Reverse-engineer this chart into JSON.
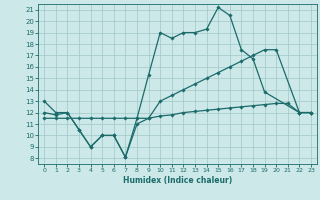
{
  "xlabel": "Humidex (Indice chaleur)",
  "bg_color": "#cde8e8",
  "grid_color": "#a0c8c8",
  "line_color": "#1b6b6b",
  "xmin": -0.5,
  "xmax": 23.5,
  "ymin": 7.5,
  "ymax": 21.5,
  "yticks": [
    8,
    9,
    10,
    11,
    12,
    13,
    14,
    15,
    16,
    17,
    18,
    19,
    20,
    21
  ],
  "xticks": [
    0,
    1,
    2,
    3,
    4,
    5,
    6,
    7,
    8,
    9,
    10,
    11,
    12,
    13,
    14,
    15,
    16,
    17,
    18,
    19,
    20,
    21,
    22,
    23
  ],
  "line1_x": [
    0,
    1,
    2,
    3,
    4,
    5,
    6,
    7,
    8,
    9,
    10,
    11,
    12,
    13,
    14,
    15,
    16,
    17,
    18,
    19,
    22,
    23
  ],
  "line1_y": [
    13,
    12,
    12,
    10.5,
    9,
    10,
    10,
    8.1,
    11.5,
    15.3,
    19,
    18.5,
    19,
    19,
    19.3,
    21.2,
    20.5,
    17.5,
    16.7,
    13.8,
    12,
    12
  ],
  "line2_x": [
    0,
    1,
    2,
    3,
    4,
    5,
    6,
    7,
    8,
    9,
    10,
    11,
    12,
    13,
    14,
    15,
    16,
    17,
    18,
    19,
    20,
    22,
    23
  ],
  "line2_y": [
    12,
    11.8,
    12,
    10.5,
    9,
    10,
    10,
    8.1,
    11,
    11.5,
    13,
    13.5,
    14,
    14.5,
    15,
    15.5,
    16,
    16.5,
    17,
    17.5,
    17.5,
    12,
    12
  ],
  "line3_x": [
    0,
    1,
    2,
    3,
    4,
    5,
    6,
    7,
    8,
    9,
    10,
    11,
    12,
    13,
    14,
    15,
    16,
    17,
    18,
    19,
    20,
    21,
    22,
    23
  ],
  "line3_y": [
    11.5,
    11.5,
    11.5,
    11.5,
    11.5,
    11.5,
    11.5,
    11.5,
    11.5,
    11.5,
    11.7,
    11.8,
    12.0,
    12.1,
    12.2,
    12.3,
    12.4,
    12.5,
    12.6,
    12.7,
    12.8,
    12.8,
    12.0,
    12.0
  ]
}
